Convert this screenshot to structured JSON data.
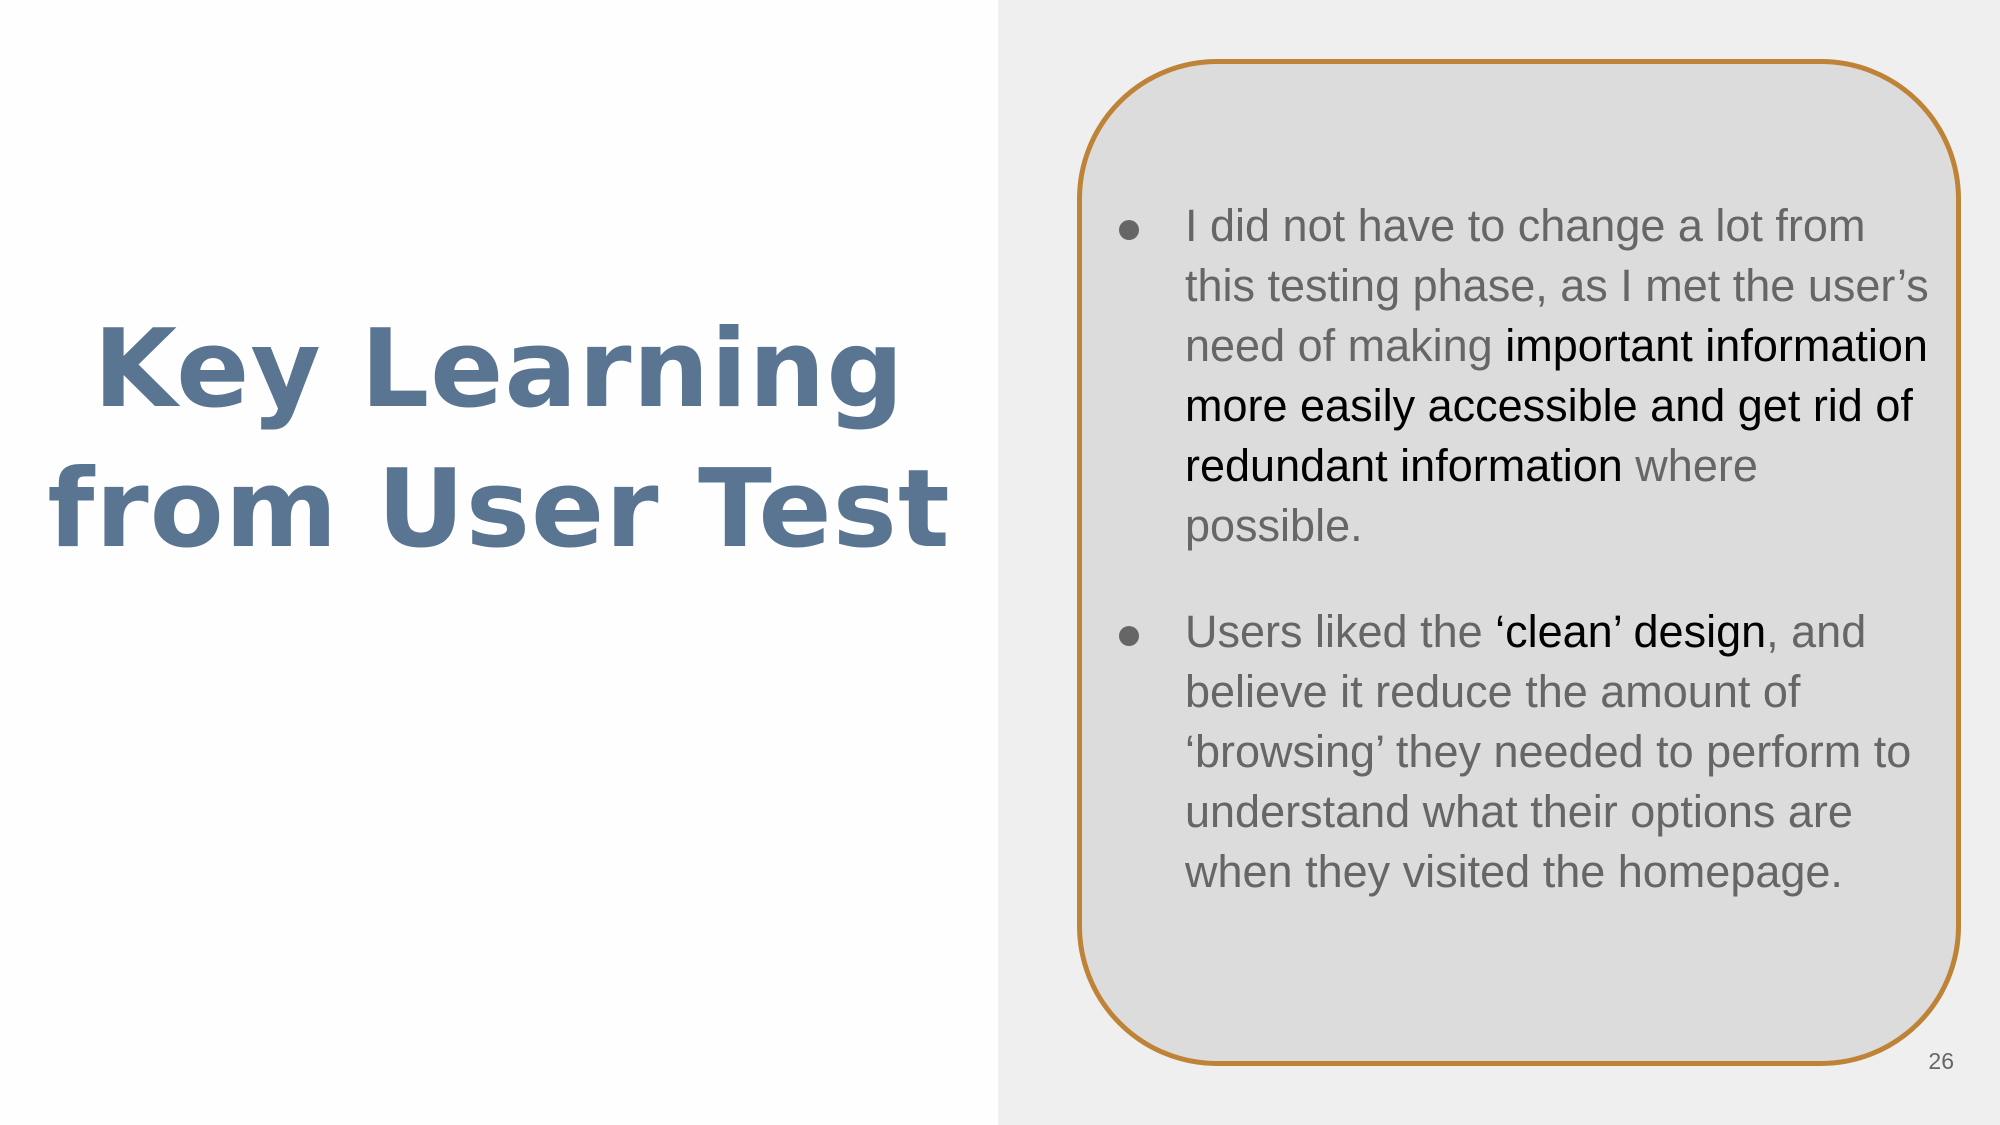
{
  "title": {
    "line1": "Key Learning",
    "line2": "from User Test"
  },
  "bullets": [
    {
      "parts": [
        "I did not have to change a lot from this testing phase, as I met the user’s need of making ",
        "important information more easily accessible and get rid of redundant information",
        " where possible."
      ]
    },
    {
      "parts": [
        "Users liked the ",
        "‘clean’ design",
        ", and believe it reduce the amount of ‘browsing’ they needed to perform to understand what their options are when they visited the homepage."
      ]
    }
  ],
  "page_number": "26",
  "colors": {
    "title": "#5a7591",
    "body_text": "#666666",
    "emphasis_text": "#000000",
    "callout_border": "#bf8337",
    "callout_fill": "#dcdcdc",
    "right_panel": "#efefef"
  }
}
